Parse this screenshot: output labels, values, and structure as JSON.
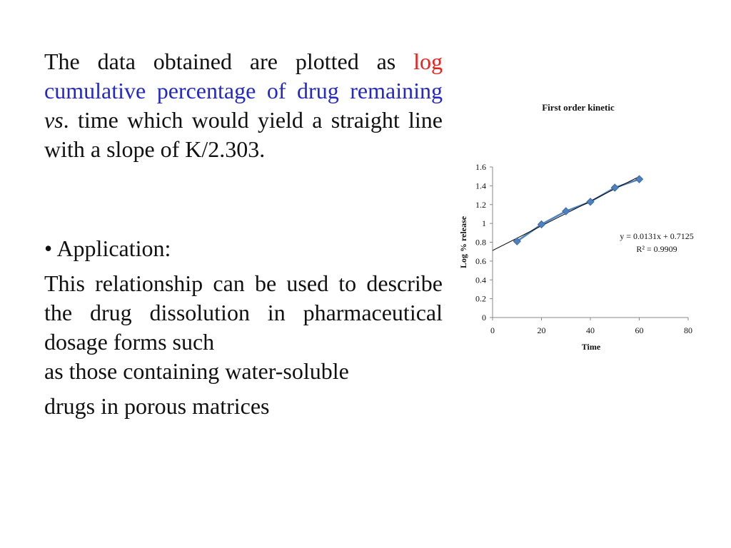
{
  "text": {
    "p1_a": "The data obtained are plotted as ",
    "p1_log": "log",
    "p1_blue": "cumulative percentage of drug remaining",
    "p1_vs": "vs",
    "p1_b": ". time which would yield a straight line with a slope of K/2.303.",
    "bullet": "• Application:",
    "p2": "This relationship can be used to describe the drug dissolution in pharmaceutical dosage forms such",
    "p2_last": "as those containing water-soluble",
    "p3": "drugs in porous matrices"
  },
  "colors": {
    "red": "#e8231f",
    "blue": "#2328c8",
    "series": "#4f81bd",
    "trend": "#000000"
  },
  "chart_data": {
    "type": "scatter",
    "title": "First order kinetic",
    "xlabel": "Time",
    "ylabel": "Log % release",
    "xlim": [
      0,
      80
    ],
    "ylim": [
      0,
      1.6
    ],
    "xticks": [
      0,
      20,
      40,
      60,
      80
    ],
    "yticks": [
      0,
      0.2,
      0.4,
      0.6,
      0.8,
      1,
      1.2,
      1.4,
      1.6
    ],
    "series": [
      {
        "x": [
          10,
          20,
          30,
          40,
          50,
          60
        ],
        "y": [
          0.81,
          0.99,
          1.13,
          1.23,
          1.38,
          1.47
        ]
      }
    ],
    "trendline": {
      "slope": 0.0131,
      "intercept": 0.7125,
      "x_range": [
        0,
        60
      ],
      "equation": "y = 0.0131x + 0.7125",
      "r2": "R² = 0.9909"
    },
    "grid": false
  }
}
